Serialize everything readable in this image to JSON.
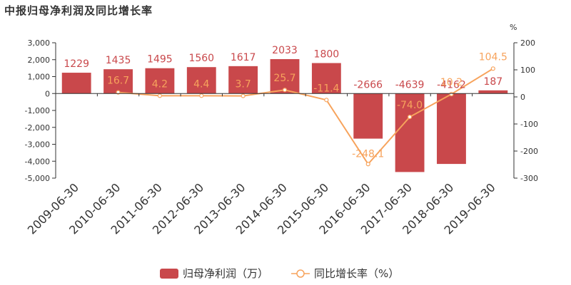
{
  "page_title": "中报归母净利润及同比增长率",
  "chart_data": {
    "type": "bar",
    "title": "中报归母净利润及同比增长率",
    "categories": [
      "2009-06-30",
      "2010-06-30",
      "2011-06-30",
      "2012-06-30",
      "2013-06-30",
      "2014-06-30",
      "2015-06-30",
      "2016-06-30",
      "2017-06-30",
      "2018-06-30",
      "2019-06-30"
    ],
    "series": [
      {
        "name": "归母净利润（万）",
        "type": "bar",
        "axis": "left",
        "color": "#c9484b",
        "values": [
          1229,
          1435,
          1495,
          1560,
          1617,
          2033,
          1800,
          -2666,
          -4639,
          -4162,
          187
        ],
        "labels": [
          "1229",
          "1435",
          "1495",
          "1560",
          "1617",
          "2033",
          "1800",
          "-2666",
          "-4639",
          "-4162",
          "187"
        ]
      },
      {
        "name": "同比增长率（%）",
        "type": "line",
        "axis": "right",
        "color": "#f7a35c",
        "values": [
          null,
          16.7,
          4.2,
          4.4,
          3.7,
          25.7,
          -11.4,
          -248.1,
          -74.0,
          10.2,
          104.5
        ],
        "labels": [
          "",
          "16.7",
          "4.2",
          "4.4",
          "3.7",
          "25.7",
          "-11.4",
          "-248.1",
          "-74.0",
          "10.2",
          "104.5"
        ]
      }
    ],
    "y_left": {
      "min": -5000,
      "max": 3000,
      "ticks": [
        3000,
        2000,
        1000,
        0,
        -1000,
        -2000,
        -3000,
        -4000,
        -5000
      ],
      "tick_labels": [
        "3,000",
        "2,000",
        "1,000",
        "0",
        "-1,000",
        "-2,000",
        "-3,000",
        "-4,000",
        "-5,000"
      ]
    },
    "y_right": {
      "min": -300,
      "max": 200,
      "ticks": [
        200,
        100,
        0,
        -100,
        -200,
        -300
      ],
      "tick_labels": [
        "200",
        "100",
        "0",
        "-100",
        "-200",
        "-300"
      ],
      "unit_label": "%"
    },
    "grid": false,
    "legend_position": "bottom"
  },
  "legend": {
    "bar_label": "归母净利润（万）",
    "line_label": "同比增长率（%）"
  }
}
